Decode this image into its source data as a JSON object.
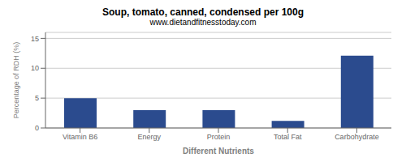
{
  "chart_data": {
    "type": "bar",
    "title": "Soup, tomato, canned, condensed per 100g",
    "subtitle": "www.dietandfitnesstoday.com",
    "xlabel": "Different Nutrients",
    "ylabel": "Percentage of RDH (%)",
    "categories": [
      "Vitamin B6",
      "Energy",
      "Protein",
      "Total Fat",
      "Carbohydrate"
    ],
    "values": [
      5.0,
      3.0,
      3.0,
      1.2,
      12.1
    ],
    "color": "#2b4b8e",
    "ylim": [
      0,
      16
    ],
    "yticks": [
      0,
      5,
      10,
      15
    ],
    "grid": true
  }
}
